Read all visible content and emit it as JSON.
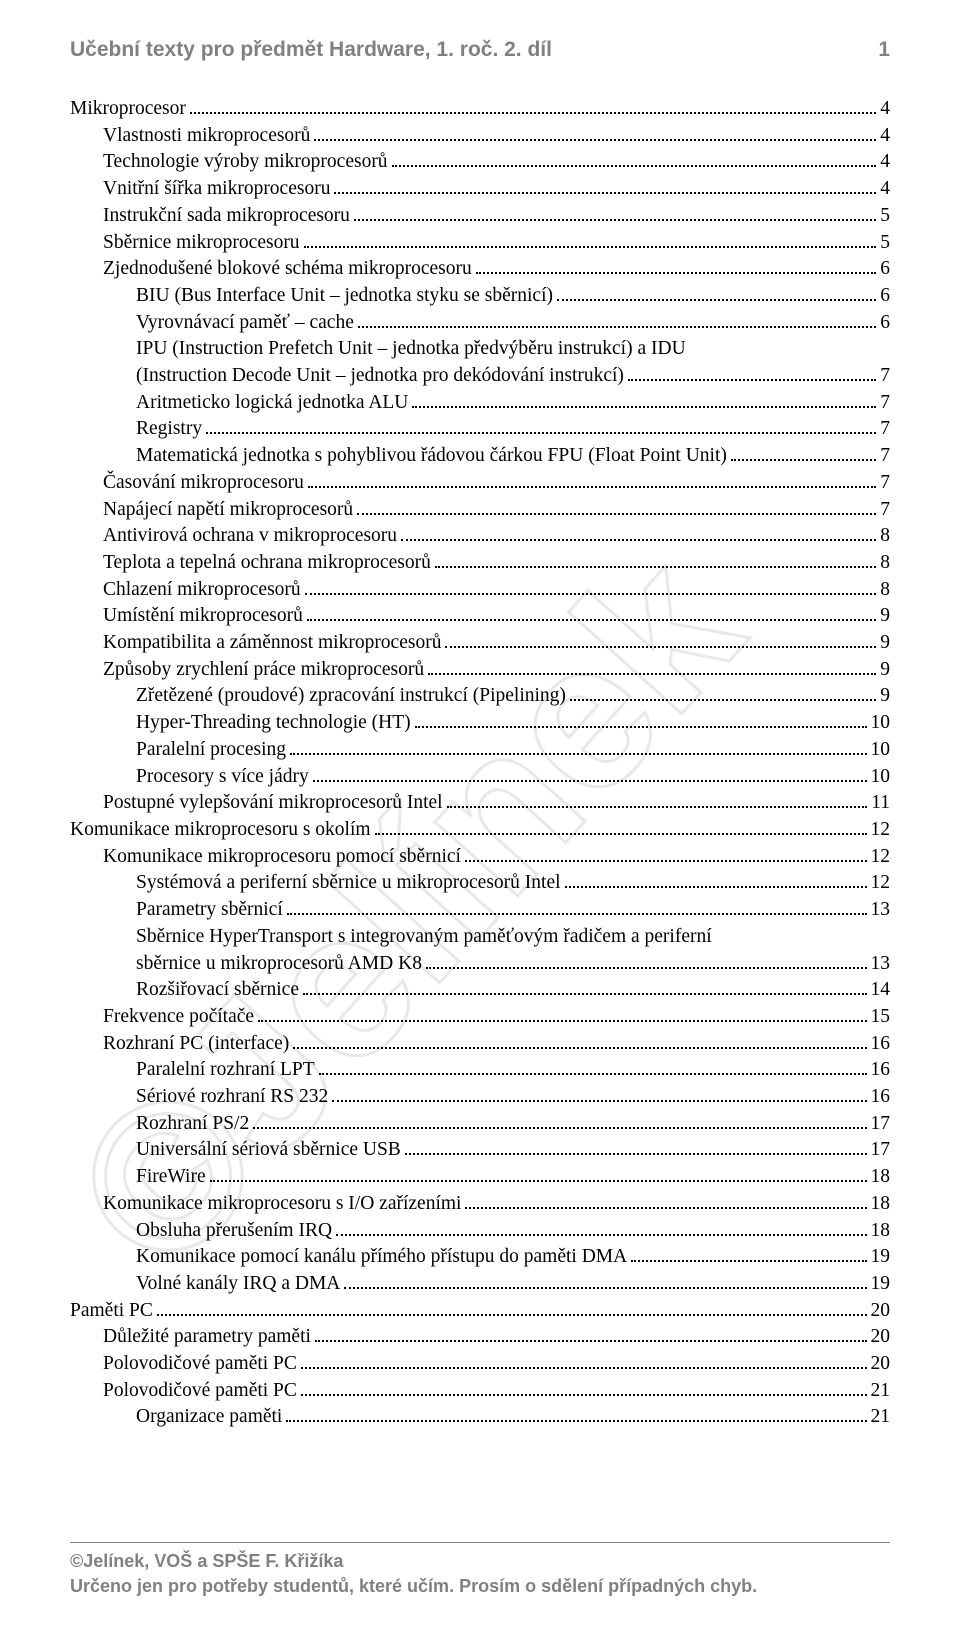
{
  "header": {
    "title": "Učební texty pro předmět Hardware, 1. roč. 2. díl",
    "page_number": "1"
  },
  "footer": {
    "line1": "©Jelínek, VOŠ a SPŠE F. Křižíka",
    "line2": "Určeno jen pro potřeby studentů, které učím. Prosím o sdělení případných chyb."
  },
  "watermark_text": "©Jelínek",
  "toc": [
    {
      "indent": 0,
      "label": "Mikroprocesor",
      "page": "4"
    },
    {
      "indent": 1,
      "label": "Vlastnosti mikroprocesorů",
      "page": "4"
    },
    {
      "indent": 1,
      "label": "Technologie výroby mikroprocesorů",
      "page": "4"
    },
    {
      "indent": 1,
      "label": "Vnitřní šířka mikroprocesoru",
      "page": "4"
    },
    {
      "indent": 1,
      "label": "Instrukční sada mikroprocesoru",
      "page": "5"
    },
    {
      "indent": 1,
      "label": "Sběrnice mikroprocesoru",
      "page": "5"
    },
    {
      "indent": 1,
      "label": "Zjednodušené blokové schéma mikroprocesoru",
      "page": "6"
    },
    {
      "indent": 2,
      "label": "BIU (Bus Interface Unit – jednotka styku se sběrnicí)",
      "page": "6"
    },
    {
      "indent": 2,
      "label": "Vyrovnávací paměť – cache",
      "page": "6"
    },
    {
      "indent": 2,
      "label": "IPU (Instruction Prefetch Unit – jednotka předvýběru instrukcí) a IDU (Instruction Decode Unit – jednotka pro dekódování instrukcí)",
      "page": "7",
      "wrap": true
    },
    {
      "indent": 2,
      "label": "Aritmeticko logická jednotka ALU",
      "page": "7"
    },
    {
      "indent": 2,
      "label": "Registry",
      "page": "7"
    },
    {
      "indent": 2,
      "label": "Matematická jednotka s pohyblivou řádovou čárkou FPU (Float Point Unit)",
      "page": "7"
    },
    {
      "indent": 1,
      "label": "Časování mikroprocesoru",
      "page": "7"
    },
    {
      "indent": 1,
      "label": "Napájecí napětí mikroprocesorů",
      "page": "7"
    },
    {
      "indent": 1,
      "label": "Antivirová ochrana v mikroprocesoru",
      "page": "8"
    },
    {
      "indent": 1,
      "label": "Teplota a tepelná ochrana mikroprocesorů",
      "page": "8"
    },
    {
      "indent": 1,
      "label": "Chlazení mikroprocesorů",
      "page": "8"
    },
    {
      "indent": 1,
      "label": "Umístění mikroprocesorů",
      "page": "9"
    },
    {
      "indent": 1,
      "label": "Kompatibilita a záměnnost mikroprocesorů",
      "page": "9"
    },
    {
      "indent": 1,
      "label": "Způsoby zrychlení práce mikroprocesorů",
      "page": "9"
    },
    {
      "indent": 2,
      "label": "Zřetězené (proudové) zpracování instrukcí (Pipelining)",
      "page": "9"
    },
    {
      "indent": 2,
      "label": "Hyper-Threading technologie (HT)",
      "page": "10"
    },
    {
      "indent": 2,
      "label": "Paralelní procesing",
      "page": "10"
    },
    {
      "indent": 2,
      "label": "Procesory s více jádry",
      "page": "10"
    },
    {
      "indent": 1,
      "label": "Postupné vylepšování mikroprocesorů Intel",
      "page": "11"
    },
    {
      "indent": 0,
      "label": "Komunikace mikroprocesoru s okolím",
      "page": "12"
    },
    {
      "indent": 1,
      "label": "Komunikace mikroprocesoru pomocí sběrnicí",
      "page": "12"
    },
    {
      "indent": 2,
      "label": "Systémová a periferní sběrnice u mikroprocesorů Intel",
      "page": "12"
    },
    {
      "indent": 2,
      "label": "Parametry sběrnicí",
      "page": "13"
    },
    {
      "indent": 2,
      "label": "Sběrnice HyperTransport s integrovaným paměťovým řadičem a periferní sběrnice u mikroprocesorů AMD K8",
      "page": "13",
      "wrap": true
    },
    {
      "indent": 2,
      "label": "Rozšiřovací sběrnice",
      "page": "14"
    },
    {
      "indent": 1,
      "label": "Frekvence počítače",
      "page": "15"
    },
    {
      "indent": 1,
      "label": "Rozhraní PC (interface)",
      "page": "16"
    },
    {
      "indent": 2,
      "label": "Paralelní rozhraní LPT",
      "page": "16"
    },
    {
      "indent": 2,
      "label": "Sériové rozhraní RS 232",
      "page": "16"
    },
    {
      "indent": 2,
      "label": "Rozhraní PS/2",
      "page": "17"
    },
    {
      "indent": 2,
      "label": "Universální sériová sběrnice USB",
      "page": "17"
    },
    {
      "indent": 2,
      "label": "FireWire",
      "page": "18"
    },
    {
      "indent": 1,
      "label": "Komunikace mikroprocesoru s I/O zařízeními",
      "page": "18"
    },
    {
      "indent": 2,
      "label": "Obsluha přerušením IRQ",
      "page": "18"
    },
    {
      "indent": 2,
      "label": "Komunikace pomocí kanálu přímého přístupu do paměti DMA",
      "page": "19"
    },
    {
      "indent": 2,
      "label": "Volné kanály IRQ a DMA",
      "page": "19"
    },
    {
      "indent": 0,
      "label": "Paměti PC",
      "page": "20"
    },
    {
      "indent": 1,
      "label": "Důležité parametry paměti",
      "page": "20"
    },
    {
      "indent": 1,
      "label": "Polovodičové paměti PC",
      "page": "20"
    },
    {
      "indent": 1,
      "label": "Polovodičové paměti PC",
      "page": "21"
    },
    {
      "indent": 2,
      "label": "Organizace paměti",
      "page": "21"
    }
  ]
}
